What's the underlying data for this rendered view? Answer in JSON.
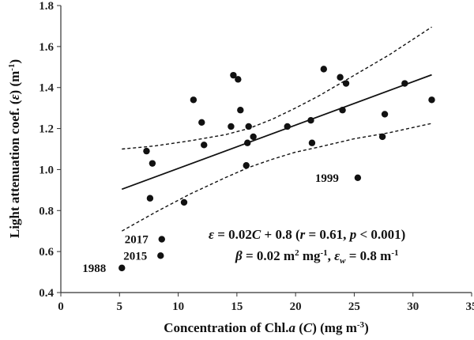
{
  "chart_data": {
    "type": "scatter",
    "xlabel": {
      "pre": "Concentration of Chl.",
      "a": "a",
      "mid": " (",
      "C": "C",
      "post": ") (mg m",
      "sup": "-3",
      "end": ")"
    },
    "ylabel": {
      "pre": "Light attenuation coef. (",
      "eps": "ε",
      "mid": ") (m",
      "sup": "-1",
      "end": ")"
    },
    "xlim": [
      0,
      35
    ],
    "ylim": [
      0.4,
      1.8
    ],
    "xticks": [
      "0",
      "5",
      "10",
      "15",
      "20",
      "25",
      "30",
      "35"
    ],
    "yticks": [
      "0.4",
      "0.6",
      "0.8",
      "1.0",
      "1.2",
      "1.4",
      "1.6",
      "1.8"
    ],
    "grid": false,
    "points": [
      {
        "x": 5.2,
        "y": 0.52
      },
      {
        "x": 7.3,
        "y": 1.09
      },
      {
        "x": 7.6,
        "y": 0.86
      },
      {
        "x": 7.8,
        "y": 1.03
      },
      {
        "x": 8.5,
        "y": 0.58
      },
      {
        "x": 8.6,
        "y": 0.66
      },
      {
        "x": 10.5,
        "y": 0.84
      },
      {
        "x": 11.3,
        "y": 1.34
      },
      {
        "x": 12.0,
        "y": 1.23
      },
      {
        "x": 12.2,
        "y": 1.12
      },
      {
        "x": 14.5,
        "y": 1.21
      },
      {
        "x": 14.7,
        "y": 1.46
      },
      {
        "x": 15.1,
        "y": 1.44
      },
      {
        "x": 15.3,
        "y": 1.29
      },
      {
        "x": 15.8,
        "y": 1.02
      },
      {
        "x": 15.9,
        "y": 1.13
      },
      {
        "x": 16.0,
        "y": 1.21
      },
      {
        "x": 16.4,
        "y": 1.16
      },
      {
        "x": 19.3,
        "y": 1.21
      },
      {
        "x": 21.3,
        "y": 1.24
      },
      {
        "x": 21.4,
        "y": 1.13
      },
      {
        "x": 22.4,
        "y": 1.49
      },
      {
        "x": 23.8,
        "y": 1.45
      },
      {
        "x": 24.0,
        "y": 1.29
      },
      {
        "x": 24.3,
        "y": 1.42
      },
      {
        "x": 25.3,
        "y": 0.96
      },
      {
        "x": 27.4,
        "y": 1.16
      },
      {
        "x": 27.6,
        "y": 1.27
      },
      {
        "x": 29.3,
        "y": 1.42
      },
      {
        "x": 31.6,
        "y": 1.34
      }
    ],
    "fit_line": {
      "x": [
        5.2,
        31.6
      ],
      "y": [
        0.904,
        1.462
      ]
    },
    "ci_upper": {
      "x": [
        5.2,
        8,
        11,
        14,
        16,
        18,
        20,
        22,
        25,
        28,
        31.6
      ],
      "y": [
        1.1,
        1.115,
        1.14,
        1.17,
        1.2,
        1.245,
        1.3,
        1.36,
        1.46,
        1.56,
        1.695
      ]
    },
    "ci_lower": {
      "x": [
        5.2,
        8,
        11,
        14,
        16,
        18,
        20,
        22,
        25,
        28,
        31.6
      ],
      "y": [
        0.7,
        0.79,
        0.88,
        0.96,
        1.01,
        1.05,
        1.085,
        1.11,
        1.15,
        1.18,
        1.225
      ]
    },
    "annotations": [
      {
        "text": "1988",
        "x": 5.2,
        "y": 0.52
      },
      {
        "text": "2015",
        "x": 8.5,
        "y": 0.58
      },
      {
        "text": "2017",
        "x": 8.6,
        "y": 0.66
      },
      {
        "text": "1999",
        "x": 25.3,
        "y": 0.96
      }
    ],
    "equation1": {
      "eps": "ε",
      "a": " = 0.02",
      "C": "C",
      "b": " + 0.8 (",
      "r": "r",
      "c": " = 0.61, ",
      "p": "p",
      "d": " < 0.001)"
    },
    "equation2": {
      "beta": "β",
      "a": " = 0.02 m",
      "sup1": "2",
      "b": " mg",
      "sup2": "-1",
      "c": ", ",
      "eps": "ε",
      "sub": "w",
      "d": " = 0.8 m",
      "sup3": "-1"
    }
  }
}
